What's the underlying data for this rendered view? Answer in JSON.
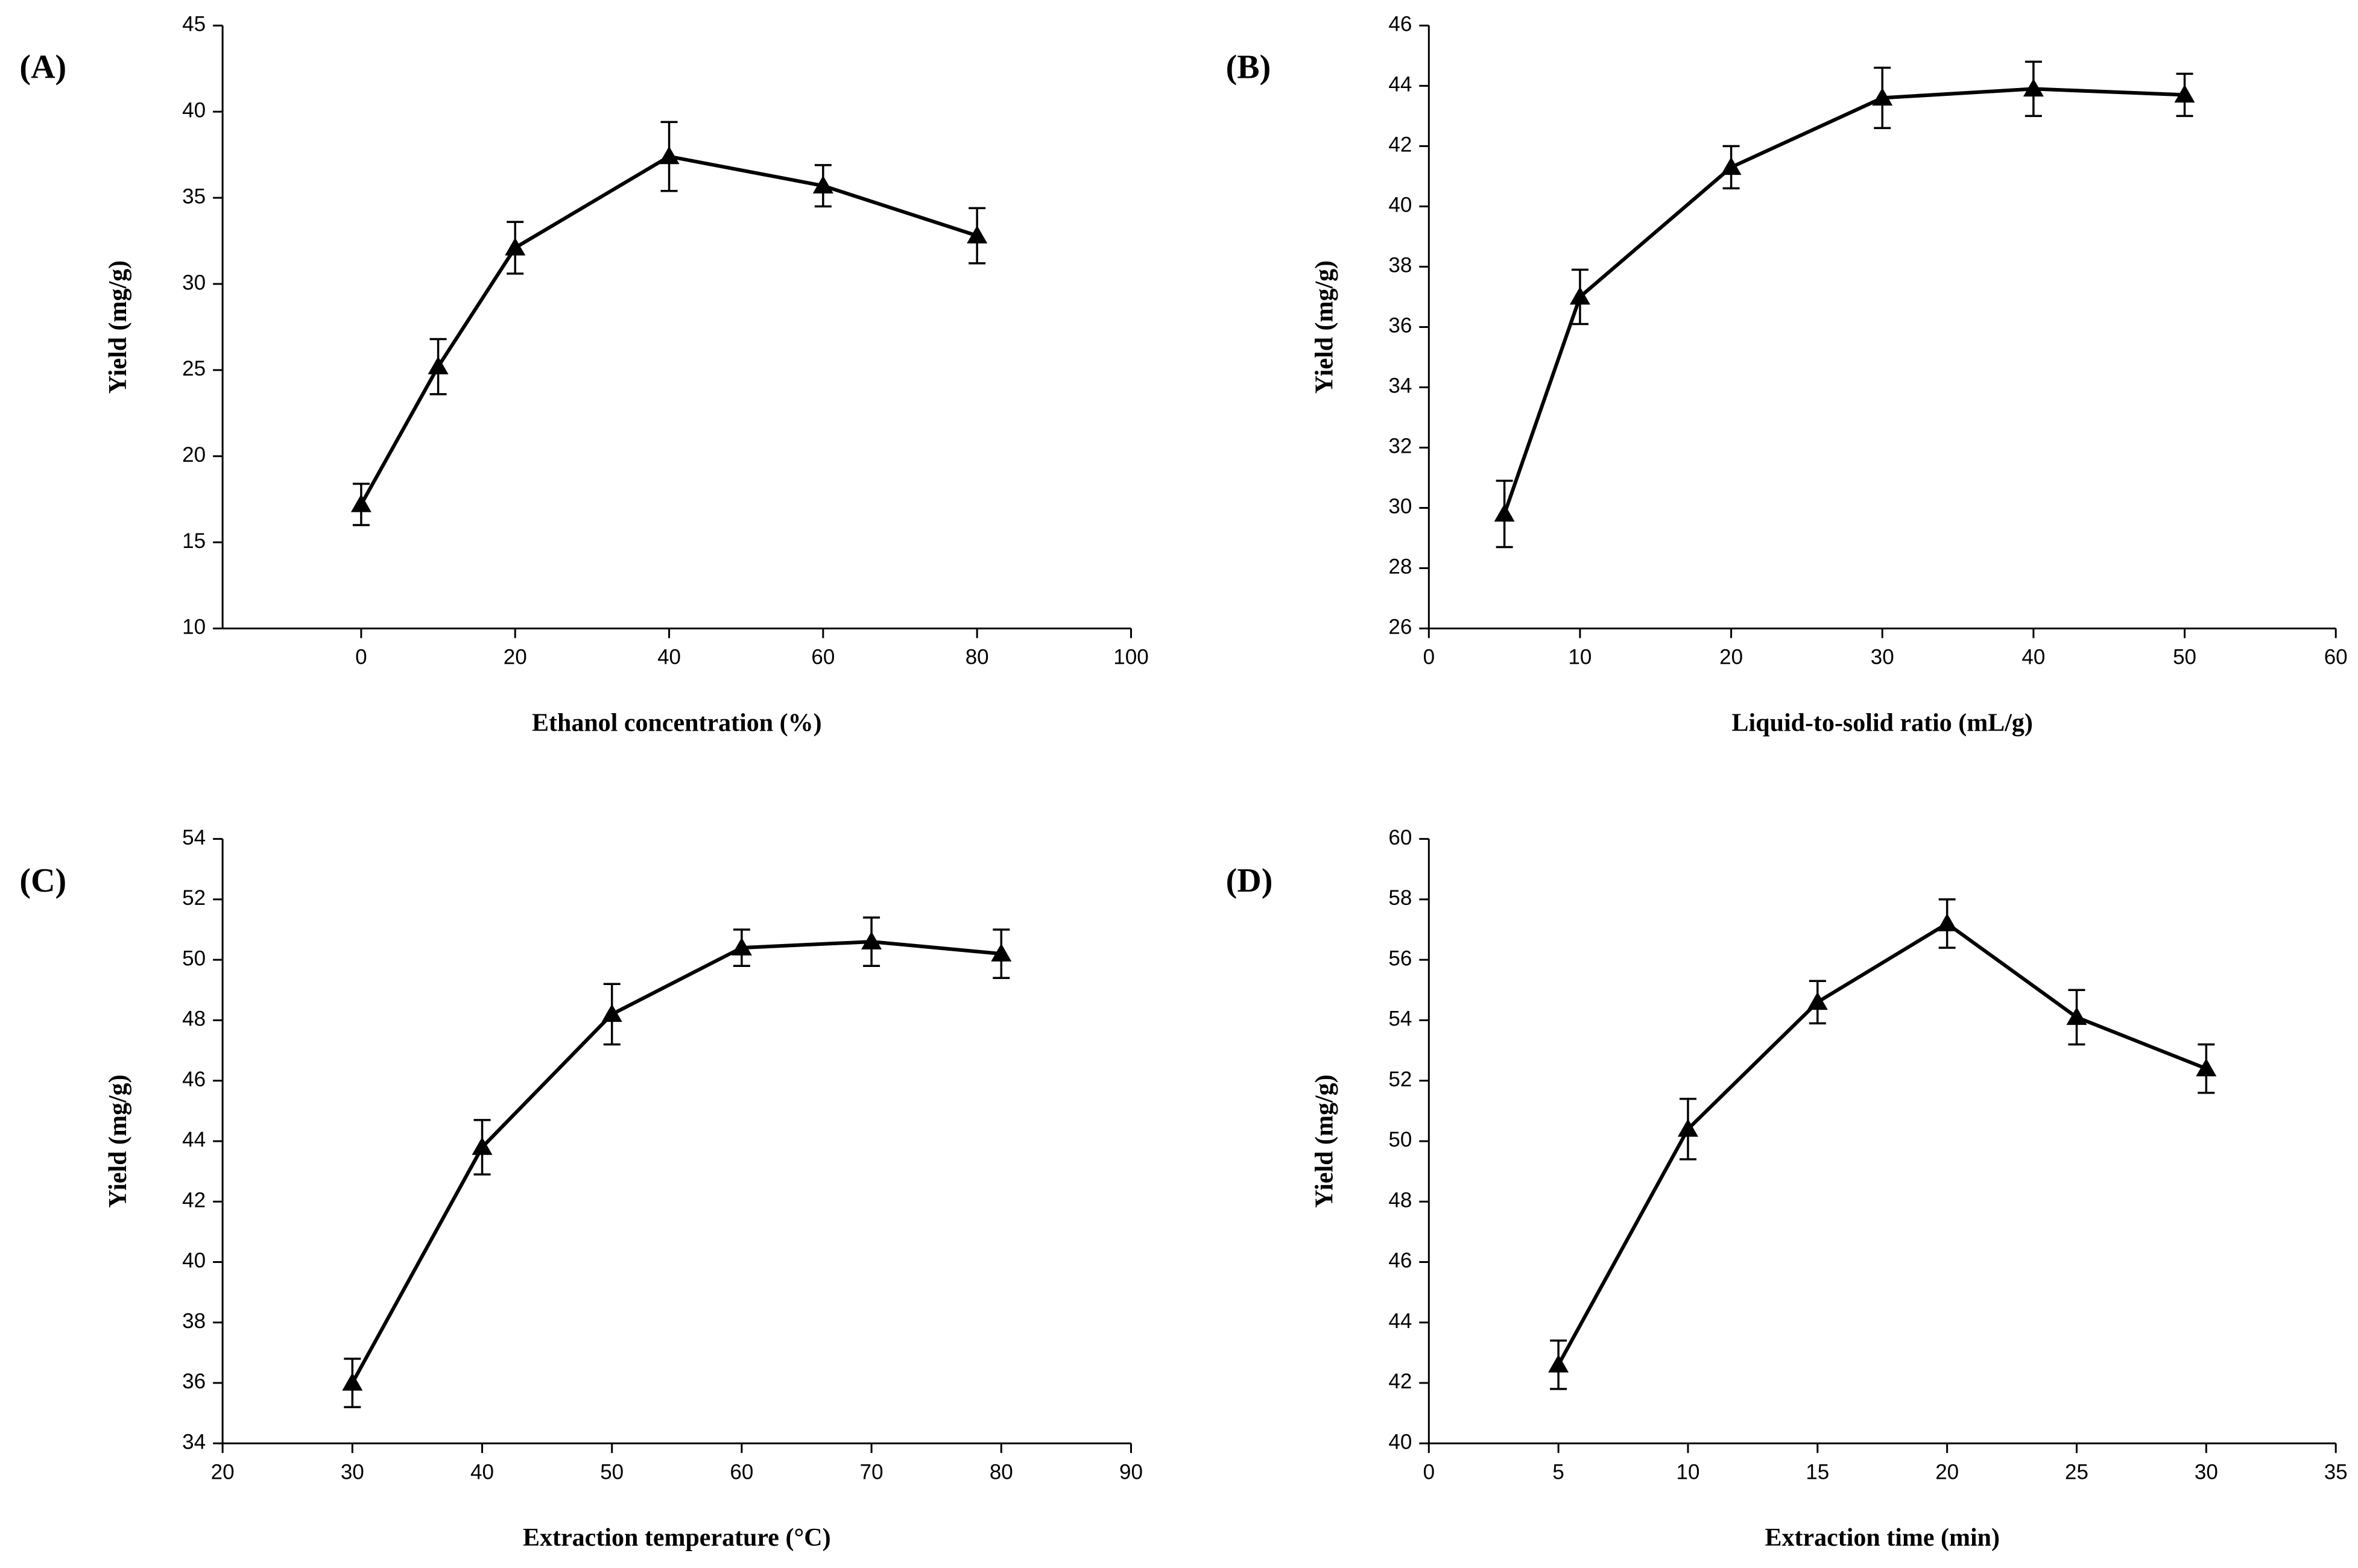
{
  "chart_data": [
    {
      "type": "line",
      "panel_label": "(A)",
      "x_label": "Ethanol concentration (%)",
      "y_label": "Yield (mg/g)",
      "x": [
        0,
        10,
        20,
        40,
        60,
        80
      ],
      "values": [
        17.2,
        25.2,
        32.1,
        37.4,
        35.7,
        32.8
      ],
      "errors": [
        1.2,
        1.6,
        1.5,
        2.0,
        1.2,
        1.6
      ],
      "color": "#000000",
      "xlim": [
        -18,
        100
      ],
      "xticks": [
        0,
        20,
        40,
        60,
        80,
        100
      ],
      "ylim": [
        10,
        45
      ],
      "yticks": [
        10,
        15,
        20,
        25,
        30,
        35,
        40,
        45
      ]
    },
    {
      "type": "line",
      "panel_label": "(B)",
      "x_label": "Liquid-to-solid ratio (mL/g)",
      "y_label": "Yield (mg/g)",
      "x": [
        5,
        10,
        20,
        30,
        40,
        50
      ],
      "values": [
        29.8,
        37.0,
        41.3,
        43.6,
        43.9,
        43.7
      ],
      "errors": [
        1.1,
        0.9,
        0.7,
        1.0,
        0.9,
        0.7
      ],
      "color": "#000000",
      "xlim": [
        0,
        60
      ],
      "xticks": [
        0,
        10,
        20,
        30,
        40,
        50,
        60
      ],
      "ylim": [
        26,
        46
      ],
      "yticks": [
        26,
        28,
        30,
        32,
        34,
        36,
        38,
        40,
        42,
        44,
        46
      ]
    },
    {
      "type": "line",
      "panel_label": "(C)",
      "x_label": "Extraction temperature (°C)",
      "y_label": "Yield (mg/g)",
      "x": [
        30,
        40,
        50,
        60,
        70,
        80
      ],
      "values": [
        36.0,
        43.8,
        48.2,
        50.4,
        50.6,
        50.2
      ],
      "errors": [
        0.8,
        0.9,
        1.0,
        0.6,
        0.8,
        0.8
      ],
      "color": "#000000",
      "xlim": [
        20,
        90
      ],
      "xticks": [
        20,
        30,
        40,
        50,
        60,
        70,
        80,
        90
      ],
      "ylim": [
        34,
        54
      ],
      "yticks": [
        34,
        36,
        38,
        40,
        42,
        44,
        46,
        48,
        50,
        52,
        54
      ]
    },
    {
      "type": "line",
      "panel_label": "(D)",
      "x_label": "Extraction time (min)",
      "y_label": "Yield (mg/g)",
      "x": [
        5,
        10,
        15,
        20,
        25,
        30
      ],
      "values": [
        42.6,
        50.4,
        54.6,
        57.2,
        54.1,
        52.4
      ],
      "errors": [
        0.8,
        1.0,
        0.7,
        0.8,
        0.9,
        0.8
      ],
      "color": "#000000",
      "xlim": [
        0,
        35
      ],
      "xticks": [
        0,
        5,
        10,
        15,
        20,
        25,
        30,
        35
      ],
      "ylim": [
        40,
        60
      ],
      "yticks": [
        40,
        42,
        44,
        46,
        48,
        50,
        52,
        54,
        56,
        58,
        60
      ]
    }
  ]
}
